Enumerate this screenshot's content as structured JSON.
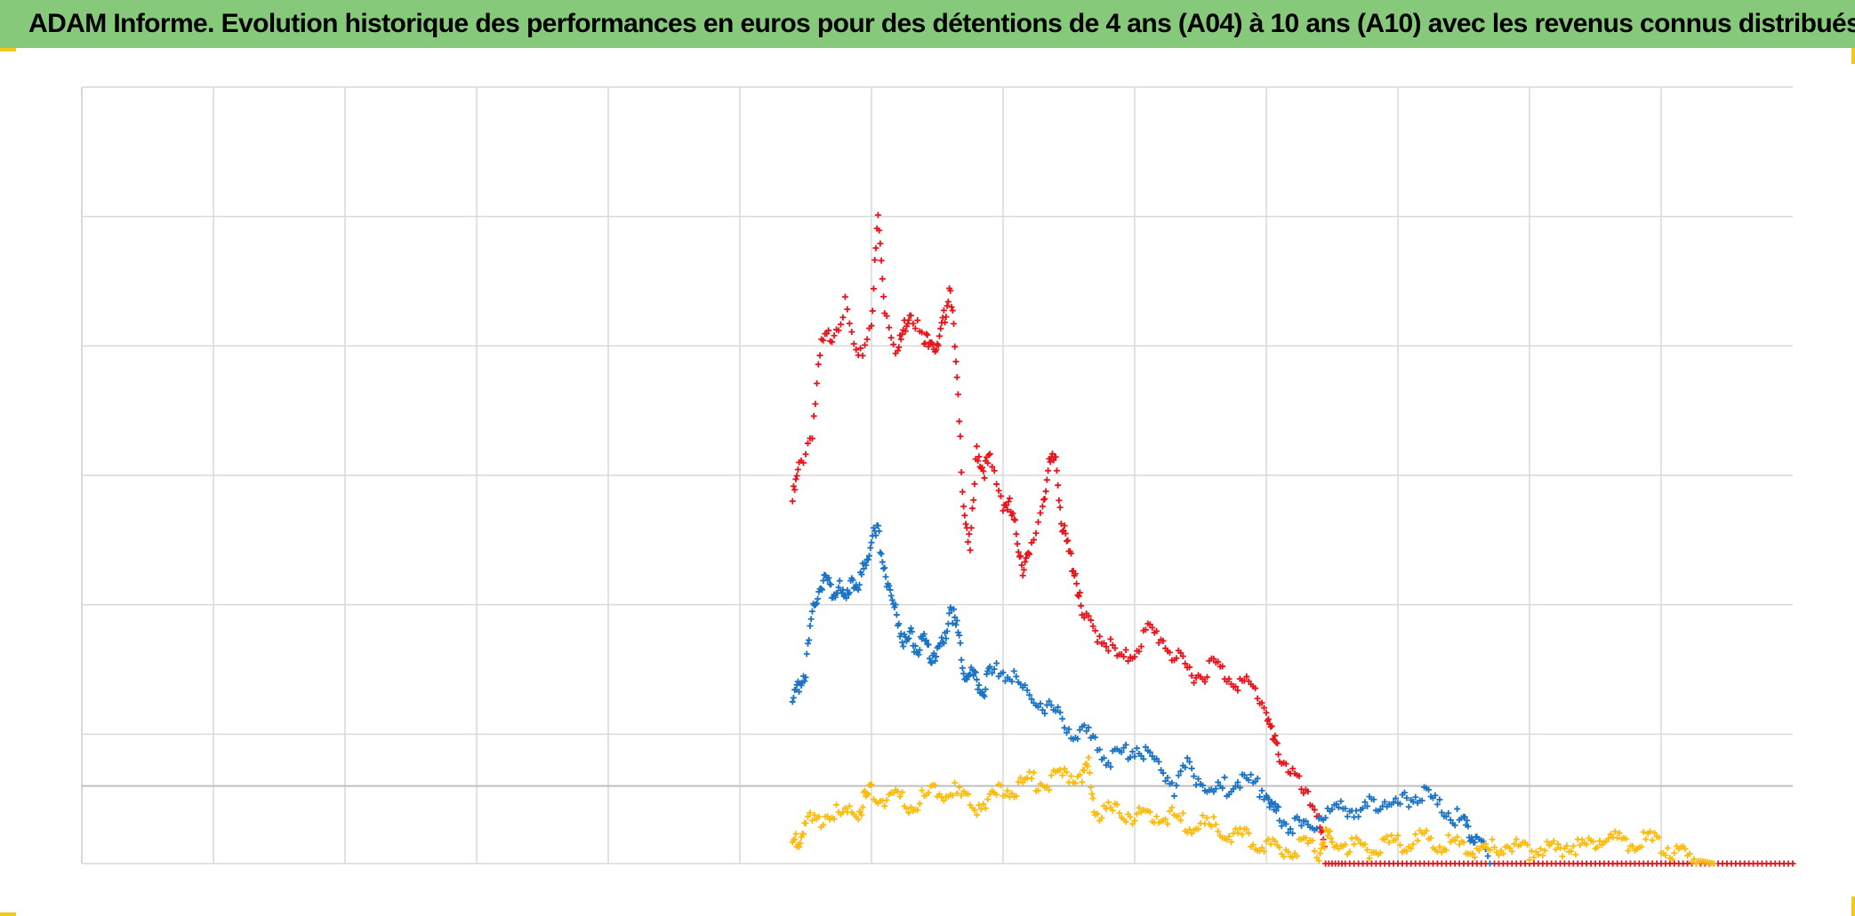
{
  "title": "ADAM Informe. Evolution historique des performances en euros pour des détentions de 4 ans (A04) à 10 ans (A10) avec les revenus connus distribués",
  "colors": {
    "title_bar": "#86c97a",
    "corner_accent": "#f2c81e",
    "gridline": "#d9d9d9",
    "zero_line": "#bfbfbf"
  },
  "chart_data": {
    "type": "scatter",
    "title": "",
    "xlabel": "",
    "ylabel": "",
    "xlim": [
      0,
      13
    ],
    "ylim": [
      -0.6,
      5.4
    ],
    "x_ticks": [
      0,
      1,
      2,
      3,
      4,
      5,
      6,
      7,
      8,
      9,
      10,
      11,
      12,
      13
    ],
    "y_gridlines": [
      -0.6,
      0,
      0.4,
      1.4,
      2.4,
      3.4,
      4.4,
      5.4
    ],
    "grid": true,
    "legend": "none",
    "marker": "plus",
    "series": [
      {
        "color": "#e8141b",
        "points": [
          [
            5.4,
            2.2
          ],
          [
            5.45,
            2.45
          ],
          [
            5.55,
            2.75
          ],
          [
            5.62,
            3.4
          ],
          [
            5.7,
            3.5
          ],
          [
            5.8,
            3.7
          ],
          [
            5.9,
            3.25
          ],
          [
            6.0,
            3.6
          ],
          [
            6.05,
            4.4
          ],
          [
            6.1,
            3.7
          ],
          [
            6.2,
            3.35
          ],
          [
            6.25,
            3.55
          ],
          [
            6.3,
            3.7
          ],
          [
            6.4,
            3.4
          ],
          [
            6.45,
            3.5
          ],
          [
            6.5,
            3.35
          ],
          [
            6.55,
            3.6
          ],
          [
            6.6,
            3.9
          ],
          [
            6.65,
            3.1
          ],
          [
            6.7,
            2.2
          ],
          [
            6.75,
            1.8
          ],
          [
            6.8,
            2.6
          ],
          [
            6.85,
            2.45
          ],
          [
            6.9,
            2.5
          ],
          [
            7.0,
            2.2
          ],
          [
            7.05,
            2.15
          ],
          [
            7.1,
            1.95
          ],
          [
            7.15,
            1.7
          ],
          [
            7.2,
            1.75
          ],
          [
            7.3,
            2.2
          ],
          [
            7.35,
            2.45
          ],
          [
            7.4,
            2.55
          ],
          [
            7.45,
            2.0
          ],
          [
            7.5,
            1.8
          ],
          [
            7.55,
            1.65
          ],
          [
            7.6,
            1.3
          ],
          [
            7.7,
            1.2
          ],
          [
            7.8,
            1.1
          ],
          [
            7.9,
            0.95
          ],
          [
            8.0,
            1.05
          ],
          [
            8.1,
            1.2
          ],
          [
            8.2,
            1.15
          ],
          [
            8.3,
            1.0
          ],
          [
            8.4,
            0.9
          ],
          [
            8.5,
            0.85
          ],
          [
            8.6,
            0.95
          ],
          [
            8.7,
            0.85
          ],
          [
            8.8,
            0.8
          ],
          [
            8.9,
            0.75
          ],
          [
            9.0,
            0.6
          ],
          [
            9.05,
            0.35
          ],
          [
            9.1,
            0.25
          ],
          [
            9.2,
            0.1
          ],
          [
            9.3,
            -0.1
          ],
          [
            9.4,
            -0.2
          ],
          [
            9.45,
            -0.6
          ],
          [
            9.6,
            -0.6
          ],
          [
            9.8,
            -0.6
          ],
          [
            10.0,
            -0.6
          ],
          [
            10.2,
            -0.6
          ],
          [
            10.4,
            -0.6
          ],
          [
            10.6,
            -0.6
          ],
          [
            10.8,
            -0.6
          ],
          [
            11.0,
            -0.6
          ],
          [
            11.2,
            -0.6
          ],
          [
            11.4,
            -0.6
          ],
          [
            11.6,
            -0.6
          ],
          [
            11.8,
            -0.6
          ],
          [
            12.0,
            -0.6
          ],
          [
            12.2,
            -0.6
          ],
          [
            12.4,
            -0.6
          ],
          [
            12.6,
            -0.6
          ],
          [
            12.8,
            -0.6
          ],
          [
            13.0,
            -0.6
          ]
        ]
      },
      {
        "color": "#1b73c4",
        "points": [
          [
            5.4,
            0.6
          ],
          [
            5.45,
            0.8
          ],
          [
            5.5,
            0.9
          ],
          [
            5.55,
            1.3
          ],
          [
            5.6,
            1.55
          ],
          [
            5.65,
            1.6
          ],
          [
            5.7,
            1.5
          ],
          [
            5.75,
            1.55
          ],
          [
            5.8,
            1.4
          ],
          [
            5.85,
            1.65
          ],
          [
            5.9,
            1.5
          ],
          [
            5.95,
            1.75
          ],
          [
            6.0,
            1.9
          ],
          [
            6.05,
            1.95
          ],
          [
            6.1,
            1.7
          ],
          [
            6.15,
            1.45
          ],
          [
            6.2,
            1.3
          ],
          [
            6.25,
            1.1
          ],
          [
            6.3,
            1.15
          ],
          [
            6.35,
            1.05
          ],
          [
            6.4,
            1.1
          ],
          [
            6.45,
            1.0
          ],
          [
            6.5,
            1.05
          ],
          [
            6.55,
            1.1
          ],
          [
            6.6,
            1.4
          ],
          [
            6.65,
            1.2
          ],
          [
            6.7,
            0.9
          ],
          [
            6.75,
            0.85
          ],
          [
            6.8,
            0.8
          ],
          [
            6.85,
            0.75
          ],
          [
            6.9,
            0.85
          ],
          [
            7.0,
            0.9
          ],
          [
            7.1,
            0.8
          ],
          [
            7.2,
            0.7
          ],
          [
            7.3,
            0.65
          ],
          [
            7.4,
            0.55
          ],
          [
            7.5,
            0.45
          ],
          [
            7.6,
            0.4
          ],
          [
            7.7,
            0.35
          ],
          [
            7.8,
            0.2
          ],
          [
            7.9,
            0.25
          ],
          [
            8.0,
            0.3
          ],
          [
            8.1,
            0.25
          ],
          [
            8.2,
            0.15
          ],
          [
            8.3,
            0.0
          ],
          [
            8.4,
            0.15
          ],
          [
            8.5,
            0.05
          ],
          [
            8.6,
            -0.05
          ],
          [
            8.7,
            0.0
          ],
          [
            8.8,
            0.05
          ],
          [
            8.9,
            0.0
          ],
          [
            9.0,
            -0.05
          ],
          [
            9.05,
            -0.2
          ],
          [
            9.1,
            -0.25
          ],
          [
            9.2,
            -0.3
          ],
          [
            9.3,
            -0.35
          ],
          [
            9.4,
            -0.25
          ],
          [
            9.5,
            -0.2
          ],
          [
            9.6,
            -0.15
          ],
          [
            9.7,
            -0.2
          ],
          [
            9.8,
            -0.15
          ],
          [
            9.9,
            -0.1
          ],
          [
            10.0,
            -0.15
          ],
          [
            10.1,
            -0.1
          ],
          [
            10.2,
            -0.05
          ],
          [
            10.3,
            -0.15
          ],
          [
            10.4,
            -0.2
          ],
          [
            10.5,
            -0.3
          ],
          [
            10.55,
            -0.35
          ],
          [
            10.6,
            -0.4
          ],
          [
            10.7,
            -0.6
          ]
        ]
      },
      {
        "color": "#fbbb0c",
        "points": [
          [
            5.4,
            -0.45
          ],
          [
            5.45,
            -0.4
          ],
          [
            5.5,
            -0.3
          ],
          [
            5.6,
            -0.25
          ],
          [
            5.7,
            -0.2
          ],
          [
            5.8,
            -0.25
          ],
          [
            5.9,
            -0.2
          ],
          [
            5.95,
            -0.1
          ],
          [
            6.0,
            -0.05
          ],
          [
            6.1,
            -0.1
          ],
          [
            6.2,
            -0.1
          ],
          [
            6.3,
            -0.15
          ],
          [
            6.4,
            -0.1
          ],
          [
            6.5,
            -0.05
          ],
          [
            6.6,
            -0.02
          ],
          [
            6.7,
            -0.1
          ],
          [
            6.8,
            -0.15
          ],
          [
            6.9,
            -0.1
          ],
          [
            7.0,
            -0.05
          ],
          [
            7.1,
            0.0
          ],
          [
            7.2,
            0.05
          ],
          [
            7.3,
            0.02
          ],
          [
            7.4,
            0.05
          ],
          [
            7.5,
            0.08
          ],
          [
            7.6,
            0.1
          ],
          [
            7.65,
            0.15
          ],
          [
            7.7,
            -0.2
          ],
          [
            7.8,
            -0.2
          ],
          [
            7.9,
            -0.2
          ],
          [
            8.0,
            -0.22
          ],
          [
            8.1,
            -0.25
          ],
          [
            8.2,
            -0.22
          ],
          [
            8.3,
            -0.25
          ],
          [
            8.4,
            -0.3
          ],
          [
            8.5,
            -0.3
          ],
          [
            8.6,
            -0.32
          ],
          [
            8.7,
            -0.35
          ],
          [
            8.8,
            -0.4
          ],
          [
            8.9,
            -0.42
          ],
          [
            9.0,
            -0.45
          ],
          [
            9.1,
            -0.48
          ],
          [
            9.2,
            -0.5
          ],
          [
            9.3,
            -0.48
          ],
          [
            9.4,
            -0.5
          ],
          [
            9.45,
            -0.38
          ],
          [
            9.5,
            -0.45
          ],
          [
            9.6,
            -0.45
          ],
          [
            9.7,
            -0.48
          ],
          [
            9.8,
            -0.48
          ],
          [
            9.9,
            -0.45
          ],
          [
            10.0,
            -0.45
          ],
          [
            10.1,
            -0.43
          ],
          [
            10.2,
            -0.42
          ],
          [
            10.3,
            -0.43
          ],
          [
            10.4,
            -0.45
          ],
          [
            10.5,
            -0.48
          ],
          [
            10.6,
            -0.48
          ],
          [
            10.7,
            -0.5
          ],
          [
            10.8,
            -0.45
          ],
          [
            10.9,
            -0.48
          ],
          [
            11.0,
            -0.5
          ],
          [
            11.1,
            -0.48
          ],
          [
            11.2,
            -0.5
          ],
          [
            11.3,
            -0.45
          ],
          [
            11.4,
            -0.48
          ],
          [
            11.5,
            -0.43
          ],
          [
            11.6,
            -0.4
          ],
          [
            11.7,
            -0.43
          ],
          [
            11.8,
            -0.45
          ],
          [
            11.9,
            -0.42
          ],
          [
            12.0,
            -0.45
          ],
          [
            12.1,
            -0.5
          ],
          [
            12.2,
            -0.55
          ],
          [
            12.3,
            -0.58
          ],
          [
            12.4,
            -0.6
          ]
        ]
      }
    ]
  }
}
